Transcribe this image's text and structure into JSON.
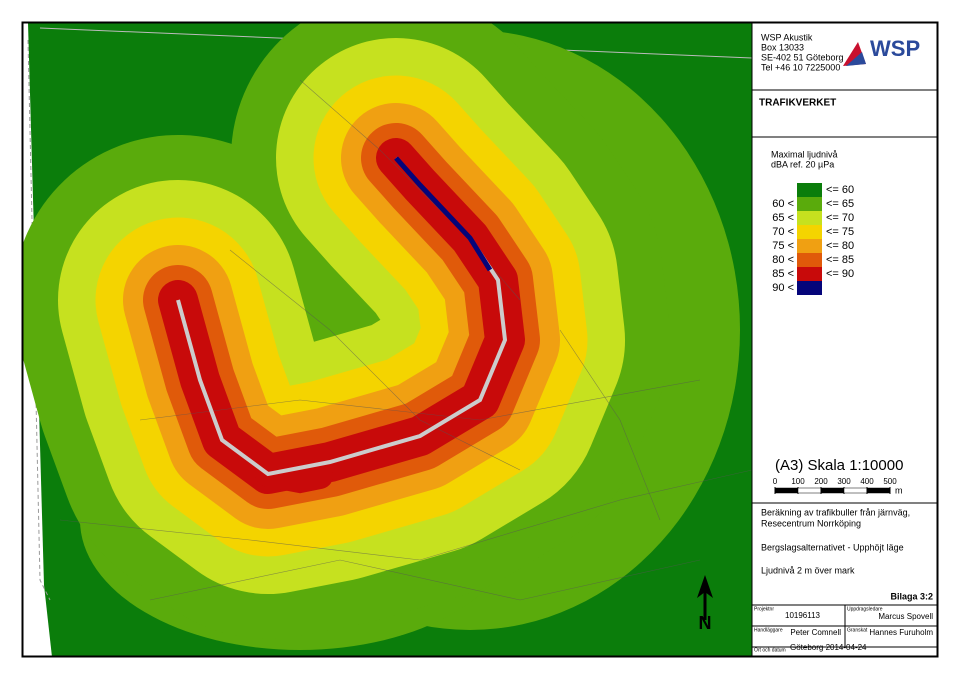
{
  "header": {
    "address": [
      "WSP Akustik",
      "Box 13033",
      "SE-402 51 Göteborg",
      "Tel +46 10 7225000"
    ],
    "logo": "WSP"
  },
  "client": "TRAFIKVERKET",
  "legend": {
    "title": [
      "Maximal ljudnivå",
      "dBA ref. 20 µPa"
    ],
    "items": [
      {
        "upper": "<= 60",
        "color": "#0b7d0b"
      },
      {
        "lower": "60 <",
        "upper": "<= 65",
        "color": "#5aab0c"
      },
      {
        "lower": "65 <",
        "upper": "<= 70",
        "color": "#c6e11f"
      },
      {
        "lower": "70 <",
        "upper": "<= 75",
        "color": "#f4d400"
      },
      {
        "lower": "75 <",
        "upper": "<= 80",
        "color": "#f0a012"
      },
      {
        "lower": "80 <",
        "upper": "<= 85",
        "color": "#e05a0a"
      },
      {
        "lower": "85 <",
        "upper": "<= 90",
        "color": "#c80a0a"
      },
      {
        "lower": "90 <",
        "color": "#05057a"
      }
    ]
  },
  "scale": {
    "title": "(A3) Skala 1:10000",
    "ticks": [
      0,
      100,
      200,
      300,
      400,
      500
    ],
    "unit": "m"
  },
  "description": [
    "Beräkning av trafikbuller från järnväg,",
    "Resecentrum Norrköping",
    "Bergslagsalternativet - Upphöjt läge",
    "Ljudnivå 2 m över mark"
  ],
  "appendix": "Bilaga 3:2",
  "info": {
    "project_label": "Projektnr",
    "project": "10196113",
    "manager_label": "Uppdragsledare",
    "manager": "Marcus Spovell",
    "handler_label": "Handläggare",
    "handler": "Peter Comnell",
    "reviewer_label": "Granskat",
    "reviewer": "Hannes Furuholm",
    "date_label": "Ort och datum",
    "date": "Göteborg 2014-04-24"
  },
  "north": "N"
}
